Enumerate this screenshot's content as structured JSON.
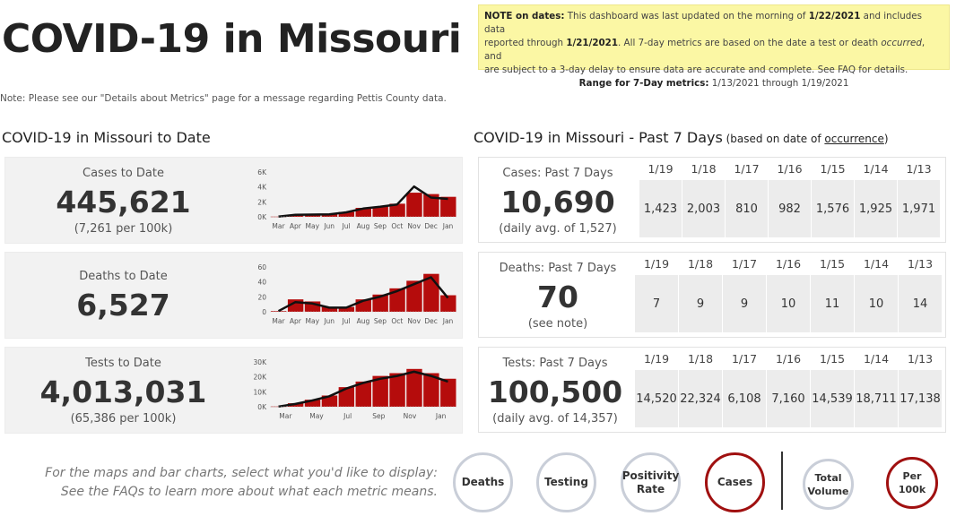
{
  "header": {
    "title": "COVID-19 in Missouri",
    "pettis_note": "Note: Please see our \"Details about Metrics\" page for a message regarding Pettis County data."
  },
  "note_box": {
    "line1_a": "NOTE on dates:",
    "line1_b": " This dashboard was last updated on the morning of ",
    "line1_c": "1/22/2021",
    "line1_d": " and includes data",
    "line2_a": "reported through ",
    "line2_b": "1/21/2021",
    "line2_c": ". All 7-day metrics are based on the date a test or death ",
    "line2_d": "occurred",
    "line2_e": ", and",
    "line3": "are subject to a 3-day delay to ensure data are accurate and complete. See FAQ for details.",
    "range_label": "Range for 7-Day metrics:",
    "range_value": " 1/13/2021 through 1/19/2021"
  },
  "to_date": {
    "section_title": "COVID-19 in Missouri to Date",
    "panels": [
      {
        "label": "Cases to Date",
        "value": "445,621",
        "sub": "(7,261 per 100k)",
        "yticks": [
          "6K",
          "4K",
          "2K",
          "0K"
        ],
        "xticks": [
          "Mar",
          "Apr",
          "May",
          "Jun",
          "Jul",
          "Aug",
          "Sep",
          "Oct",
          "Nov",
          "Dec",
          "Jan"
        ]
      },
      {
        "label": "Deaths to Date",
        "value": "6,527",
        "sub": "",
        "yticks": [
          "60",
          "40",
          "20",
          "0"
        ],
        "xticks": [
          "Mar",
          "Apr",
          "May",
          "Jun",
          "Jul",
          "Aug",
          "Sep",
          "Oct",
          "Nov",
          "Dec",
          "Jan"
        ]
      },
      {
        "label": "Tests to Date",
        "value": "4,013,031",
        "sub": "(65,386 per 100k)",
        "yticks": [
          "30K",
          "20K",
          "10K",
          "0K"
        ],
        "xticks": [
          "Mar",
          "May",
          "Jul",
          "Sep",
          "Nov",
          "Jan"
        ]
      }
    ]
  },
  "past7": {
    "section_title": "COVID-19 in Missouri - Past 7 Days",
    "section_sub_a": " (based on date of ",
    "section_sub_link": "occurrence",
    "section_sub_b": ")",
    "days": [
      "1/19",
      "1/18",
      "1/17",
      "1/16",
      "1/15",
      "1/14",
      "1/13"
    ],
    "panels": [
      {
        "label": "Cases: Past 7 Days",
        "value": "10,690",
        "sub": "(daily avg. of 1,527)",
        "daily": [
          "1,423",
          "2,003",
          "810",
          "982",
          "1,576",
          "1,925",
          "1,971"
        ]
      },
      {
        "label": "Deaths: Past 7 Days",
        "value": "70",
        "sub": "(see note)",
        "daily": [
          "7",
          "9",
          "9",
          "10",
          "11",
          "10",
          "14"
        ]
      },
      {
        "label": "Tests: Past 7 Days",
        "value": "100,500",
        "sub": "(daily avg. of 14,357)",
        "daily": [
          "14,520",
          "22,324",
          "6,108",
          "7,160",
          "14,539",
          "18,711",
          "17,138"
        ]
      }
    ]
  },
  "selector": {
    "instruction_1": "For the maps and bar charts, select what you'd like to display:",
    "instruction_2": "See the FAQs to learn more about what each metric means.",
    "metric_buttons": [
      "Deaths",
      "Testing",
      "Positivity Rate",
      "Cases"
    ],
    "selected_metric": "Cases",
    "volume_buttons": [
      "Total Volume",
      "Per 100k"
    ],
    "selected_volume": "Per 100k"
  },
  "colors": {
    "bar": "#b50c0c",
    "avg_line": "#111111",
    "note_bg": "#fbf7a4",
    "selected_ring": "#a01010",
    "ring": "#c9ced8"
  },
  "chart_data": [
    {
      "type": "bar",
      "title": "",
      "ylabel": "",
      "ylim": [
        0,
        6500
      ],
      "x": [
        "Mar",
        "Apr",
        "May",
        "Jun",
        "Jul",
        "Aug",
        "Sep",
        "Oct",
        "Nov",
        "Dec",
        "Jan"
      ],
      "series": [
        {
          "values": [
            30,
            320,
            360,
            380,
            700,
            1300,
            1500,
            1900,
            3500,
            3300,
            2900
          ]
        },
        {
          "values": [
            20,
            300,
            330,
            360,
            650,
            1200,
            1450,
            1800,
            4400,
            2800,
            2600
          ]
        }
      ]
    },
    {
      "type": "bar",
      "title": "",
      "ylabel": "",
      "ylim": [
        0,
        65
      ],
      "x": [
        "Mar",
        "Apr",
        "May",
        "Jun",
        "Jul",
        "Aug",
        "Sep",
        "Oct",
        "Nov",
        "Dec",
        "Jan"
      ],
      "series": [
        {
          "values": [
            1,
            18,
            15,
            7,
            7,
            18,
            25,
            34,
            45,
            55,
            24
          ]
        },
        {
          "values": [
            1,
            14,
            12,
            6,
            6,
            16,
            22,
            30,
            40,
            50,
            20
          ]
        }
      ]
    },
    {
      "type": "bar",
      "title": "",
      "ylabel": "",
      "ylim": [
        0,
        32000
      ],
      "x": [
        "Mar",
        "Apr",
        "May",
        "Jun",
        "Jul",
        "Aug",
        "Sep",
        "Oct",
        "Nov",
        "Dec",
        "Jan"
      ],
      "series": [
        {
          "values": [
            200,
            2500,
            5000,
            8000,
            14000,
            18000,
            22000,
            24000,
            27000,
            24000,
            20000
          ]
        },
        {
          "values": [
            150,
            2000,
            4500,
            7500,
            13000,
            17000,
            20000,
            22000,
            25000,
            22000,
            18000
          ]
        }
      ]
    }
  ]
}
